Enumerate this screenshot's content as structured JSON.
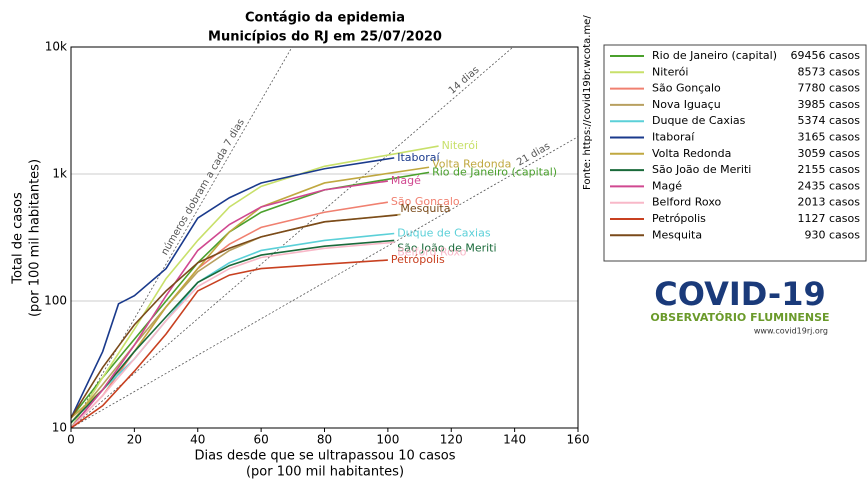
{
  "chart_data": {
    "type": "line",
    "title": "Contágio da epidemia",
    "subtitle": "Municípios do RJ em 25/07/2020",
    "xlabel": [
      "Dias desde que se ultrapassou 10 casos",
      "(por 100 mil habitantes)"
    ],
    "ylabel": [
      "Total de casos",
      "(por 100 mil habitantes)"
    ],
    "xlim": [
      0,
      160
    ],
    "xticks": [
      0,
      20,
      40,
      60,
      80,
      100,
      120,
      140,
      160
    ],
    "ylim": [
      10,
      10000
    ],
    "log_y": true,
    "grid": true,
    "yticks": [
      10,
      100,
      {
        "value": 1000,
        "label": "1k"
      },
      {
        "value": 10000,
        "label": "10k"
      }
    ],
    "reference_lines": [
      {
        "label": "números dobram a cada 7 dias",
        "doubling_days": 7
      },
      {
        "label": "14 dias",
        "doubling_days": 14
      },
      {
        "label": "21 dias",
        "doubling_days": 21
      }
    ],
    "source": "Fonte: https://covid19br.wcota.me/",
    "series": [
      {
        "name": "Rio de Janeiro (capital)",
        "cases": "69456 casos",
        "color": "#4aa02c",
        "x": [
          0,
          10,
          20,
          30,
          40,
          50,
          60,
          80,
          113
        ],
        "values": [
          12,
          25,
          50,
          100,
          200,
          350,
          500,
          750,
          1030
        ]
      },
      {
        "name": "Niterói",
        "cases": "8573 casos",
        "color": "#c8e06a",
        "x": [
          0,
          10,
          20,
          30,
          40,
          50,
          60,
          80,
          116
        ],
        "values": [
          10,
          25,
          60,
          150,
          300,
          550,
          800,
          1150,
          1660
        ]
      },
      {
        "name": "São Gonçalo",
        "cases": "7780 casos",
        "color": "#f08070",
        "x": [
          0,
          10,
          20,
          30,
          40,
          50,
          60,
          80,
          100
        ],
        "values": [
          10,
          18,
          40,
          90,
          180,
          280,
          380,
          500,
          600
        ]
      },
      {
        "name": "Nova Iguaçu",
        "cases": "3985 casos",
        "color": "#b8a060",
        "x": [
          0,
          10,
          20,
          30,
          40,
          50,
          60,
          80,
          104
        ],
        "values": [
          11,
          22,
          45,
          90,
          170,
          250,
          320,
          420,
          480
        ]
      },
      {
        "name": "Duque de Caxias",
        "cases": "5374 casos",
        "color": "#5bd0d8",
        "x": [
          0,
          10,
          20,
          30,
          40,
          50,
          60,
          80,
          102
        ],
        "values": [
          10,
          20,
          35,
          70,
          140,
          200,
          250,
          300,
          340
        ]
      },
      {
        "name": "Itaboraí",
        "cases": "3165 casos",
        "color": "#1a3a8c",
        "x": [
          0,
          10,
          15,
          20,
          30,
          40,
          50,
          60,
          80,
          102
        ],
        "values": [
          12,
          40,
          95,
          110,
          180,
          450,
          650,
          850,
          1100,
          1340
        ]
      },
      {
        "name": "Volta Redonda",
        "cases": "3059 casos",
        "color": "#c0a840",
        "x": [
          0,
          10,
          20,
          30,
          40,
          50,
          60,
          80,
          113
        ],
        "values": [
          12,
          20,
          40,
          90,
          180,
          350,
          550,
          850,
          1130
        ]
      },
      {
        "name": "São João de Meriti",
        "cases": "2155 casos",
        "color": "#1a6a3a",
        "x": [
          0,
          10,
          20,
          30,
          40,
          50,
          60,
          80,
          102
        ],
        "values": [
          11,
          20,
          40,
          75,
          140,
          190,
          230,
          270,
          300
        ]
      },
      {
        "name": "Magé",
        "cases": "2435 casos",
        "color": "#d04890",
        "x": [
          0,
          10,
          20,
          30,
          40,
          50,
          60,
          80,
          100
        ],
        "values": [
          10,
          20,
          45,
          110,
          250,
          400,
          550,
          750,
          880
        ]
      },
      {
        "name": "Belford Roxo",
        "cases": "2013 casos",
        "color": "#f8b8c8",
        "x": [
          0,
          10,
          20,
          30,
          40,
          50,
          60,
          80,
          102
        ],
        "values": [
          10,
          18,
          35,
          70,
          130,
          180,
          220,
          260,
          290
        ]
      },
      {
        "name": "Petrópolis",
        "cases": "1127 casos",
        "color": "#c84020",
        "x": [
          0,
          10,
          20,
          30,
          40,
          50,
          60,
          80,
          100
        ],
        "values": [
          10,
          15,
          28,
          55,
          120,
          160,
          180,
          195,
          210
        ]
      },
      {
        "name": "Mesquita",
        "cases": "930 casos",
        "color": "#7a4a1a",
        "x": [
          0,
          10,
          20,
          30,
          40,
          50,
          60,
          80,
          103
        ],
        "values": [
          12,
          30,
          65,
          120,
          200,
          260,
          320,
          420,
          475
        ]
      }
    ]
  },
  "logo": {
    "title": "COVID-19",
    "subtitle": "OBSERVATÓRIO FLUMINENSE",
    "url": "www.covid19rj.org"
  }
}
